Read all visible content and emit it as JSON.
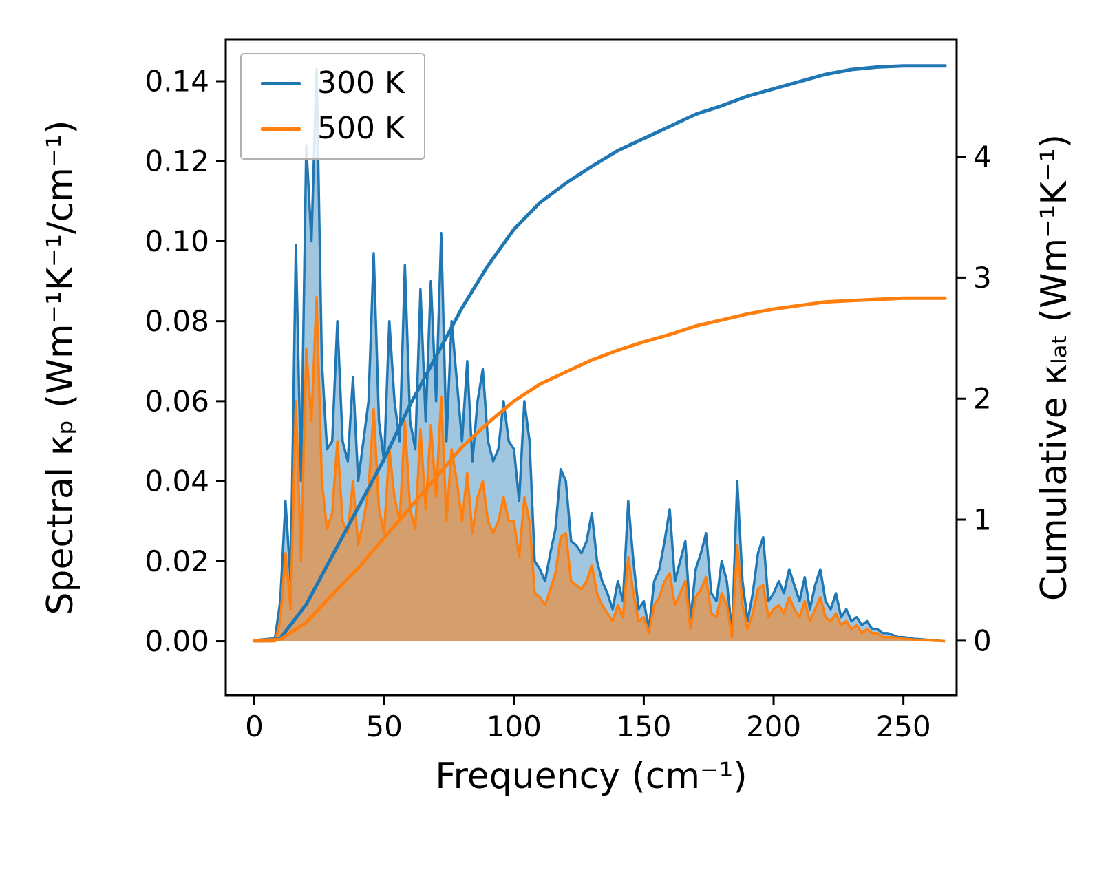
{
  "chart_data": {
    "type": "line",
    "title": "",
    "xlabel": "Frequency (cm⁻¹)",
    "ylabel_left": "Spectral κₚ (Wm⁻¹K⁻¹/cm⁻¹)",
    "ylabel_right": "Cumulative κₗₐₜ (Wm⁻¹K⁻¹)",
    "xlim": [
      -11,
      270.5
    ],
    "ylim_left": [
      -0.0135,
      0.1505
    ],
    "ylim_right": [
      -0.45,
      4.97
    ],
    "grid": false,
    "legend_position": "upper left",
    "x_ticks": {
      "values": [
        0,
        50,
        100,
        150,
        200,
        250
      ],
      "labels": [
        "0",
        "50",
        "100",
        "150",
        "200",
        "250"
      ]
    },
    "y_ticks_left": {
      "values": [
        0,
        0.02,
        0.04,
        0.06,
        0.08,
        0.1,
        0.12,
        0.14
      ],
      "labels": [
        "0.00",
        "0.02",
        "0.04",
        "0.06",
        "0.08",
        "0.10",
        "0.12",
        "0.14"
      ]
    },
    "y_ticks_right": {
      "values": [
        0,
        1,
        2,
        3,
        4
      ],
      "labels": [
        "0",
        "1",
        "2",
        "3",
        "4"
      ]
    },
    "legend_items": [
      {
        "label": "300 K",
        "color": "#1f77b4"
      },
      {
        "label": "500 K",
        "color": "#ff7f0e"
      }
    ],
    "spectral": {
      "axis": "left",
      "x_start": 0,
      "x_step": 2,
      "series": [
        {
          "name": "300 K",
          "color": "#1f77b4",
          "fill_opacity": 0.42,
          "values": [
            0,
            0,
            0,
            0,
            0.001,
            0.01,
            0.035,
            0.015,
            0.099,
            0.04,
            0.124,
            0.1,
            0.143,
            0.07,
            0.048,
            0.05,
            0.08,
            0.05,
            0.045,
            0.066,
            0.04,
            0.05,
            0.06,
            0.097,
            0.055,
            0.045,
            0.08,
            0.06,
            0.05,
            0.094,
            0.055,
            0.048,
            0.088,
            0.055,
            0.09,
            0.06,
            0.102,
            0.05,
            0.08,
            0.065,
            0.05,
            0.07,
            0.045,
            0.06,
            0.068,
            0.05,
            0.045,
            0.048,
            0.06,
            0.05,
            0.048,
            0.035,
            0.06,
            0.05,
            0.02,
            0.018,
            0.015,
            0.022,
            0.028,
            0.043,
            0.04,
            0.025,
            0.024,
            0.022,
            0.025,
            0.032,
            0.02,
            0.015,
            0.012,
            0.008,
            0.015,
            0.01,
            0.035,
            0.02,
            0.008,
            0.01,
            0.003,
            0.015,
            0.018,
            0.025,
            0.033,
            0.015,
            0.02,
            0.025,
            0.005,
            0.018,
            0.022,
            0.027,
            0.012,
            0.01,
            0.02,
            0.015,
            0.002,
            0.04,
            0.015,
            0.005,
            0.012,
            0.022,
            0.026,
            0.01,
            0.012,
            0.015,
            0.012,
            0.018,
            0.014,
            0.01,
            0.016,
            0.008,
            0.014,
            0.018,
            0.01,
            0.008,
            0.012,
            0.006,
            0.008,
            0.005,
            0.006,
            0.004,
            0.005,
            0.003,
            0.003,
            0.002,
            0.002,
            0.0015,
            0.001,
            0.001,
            0.0008,
            0.0006,
            0.0005,
            0.0004,
            0.0003,
            0.0002,
            0.0001,
            0
          ]
        },
        {
          "name": "500 K",
          "color": "#ff7f0e",
          "fill_opacity": 0.55,
          "values": [
            0,
            0,
            0,
            0,
            0,
            0.005,
            0.022,
            0.008,
            0.06,
            0.02,
            0.073,
            0.055,
            0.086,
            0.04,
            0.028,
            0.032,
            0.05,
            0.03,
            0.027,
            0.04,
            0.024,
            0.03,
            0.038,
            0.058,
            0.033,
            0.027,
            0.048,
            0.036,
            0.03,
            0.055,
            0.033,
            0.028,
            0.053,
            0.033,
            0.054,
            0.036,
            0.061,
            0.03,
            0.048,
            0.04,
            0.03,
            0.042,
            0.027,
            0.036,
            0.04,
            0.03,
            0.027,
            0.03,
            0.036,
            0.03,
            0.03,
            0.021,
            0.036,
            0.03,
            0.012,
            0.011,
            0.009,
            0.013,
            0.017,
            0.026,
            0.027,
            0.015,
            0.014,
            0.013,
            0.015,
            0.019,
            0.012,
            0.009,
            0.007,
            0.005,
            0.009,
            0.006,
            0.021,
            0.012,
            0.005,
            0.006,
            0.002,
            0.009,
            0.011,
            0.015,
            0.017,
            0.009,
            0.012,
            0.015,
            0.003,
            0.011,
            0.013,
            0.016,
            0.007,
            0.006,
            0.012,
            0.009,
            0.001,
            0.024,
            0.009,
            0.003,
            0.007,
            0.013,
            0.014,
            0.006,
            0.008,
            0.009,
            0.007,
            0.011,
            0.008,
            0.006,
            0.01,
            0.005,
            0.008,
            0.011,
            0.006,
            0.005,
            0.007,
            0.004,
            0.005,
            0.003,
            0.004,
            0.002,
            0.003,
            0.002,
            0.002,
            0.001,
            0.001,
            0.001,
            0.0008,
            0.0006,
            0.0005,
            0.0004,
            0.0003,
            0.0002,
            0.0002,
            0.0001,
            0.0001,
            0
          ]
        }
      ]
    },
    "cumulative": {
      "axis": "right",
      "series": [
        {
          "name": "300 K",
          "color": "#1f77b4",
          "points": [
            [
              0,
              0
            ],
            [
              10,
              0.02
            ],
            [
              20,
              0.3
            ],
            [
              30,
              0.7
            ],
            [
              40,
              1.1
            ],
            [
              50,
              1.5
            ],
            [
              60,
              1.95
            ],
            [
              70,
              2.35
            ],
            [
              80,
              2.75
            ],
            [
              90,
              3.1
            ],
            [
              100,
              3.4
            ],
            [
              110,
              3.62
            ],
            [
              120,
              3.78
            ],
            [
              130,
              3.92
            ],
            [
              140,
              4.05
            ],
            [
              150,
              4.15
            ],
            [
              160,
              4.25
            ],
            [
              170,
              4.35
            ],
            [
              180,
              4.42
            ],
            [
              190,
              4.5
            ],
            [
              200,
              4.56
            ],
            [
              210,
              4.62
            ],
            [
              220,
              4.68
            ],
            [
              230,
              4.72
            ],
            [
              240,
              4.74
            ],
            [
              250,
              4.75
            ],
            [
              260,
              4.75
            ],
            [
              266,
              4.75
            ]
          ]
        },
        {
          "name": "500 K",
          "color": "#ff7f0e",
          "points": [
            [
              0,
              0
            ],
            [
              10,
              0.01
            ],
            [
              20,
              0.15
            ],
            [
              30,
              0.38
            ],
            [
              40,
              0.6
            ],
            [
              50,
              0.85
            ],
            [
              60,
              1.1
            ],
            [
              70,
              1.35
            ],
            [
              80,
              1.6
            ],
            [
              90,
              1.8
            ],
            [
              100,
              1.98
            ],
            [
              110,
              2.12
            ],
            [
              120,
              2.22
            ],
            [
              130,
              2.32
            ],
            [
              140,
              2.4
            ],
            [
              150,
              2.47
            ],
            [
              160,
              2.53
            ],
            [
              170,
              2.6
            ],
            [
              180,
              2.65
            ],
            [
              190,
              2.7
            ],
            [
              200,
              2.74
            ],
            [
              210,
              2.77
            ],
            [
              220,
              2.8
            ],
            [
              230,
              2.81
            ],
            [
              240,
              2.82
            ],
            [
              250,
              2.83
            ],
            [
              260,
              2.83
            ],
            [
              266,
              2.83
            ]
          ]
        }
      ]
    },
    "style": {
      "spine_color": "#000000",
      "spectral_line_width": 3.5,
      "cumulative_line_width": 5,
      "background": "#ffffff"
    }
  }
}
